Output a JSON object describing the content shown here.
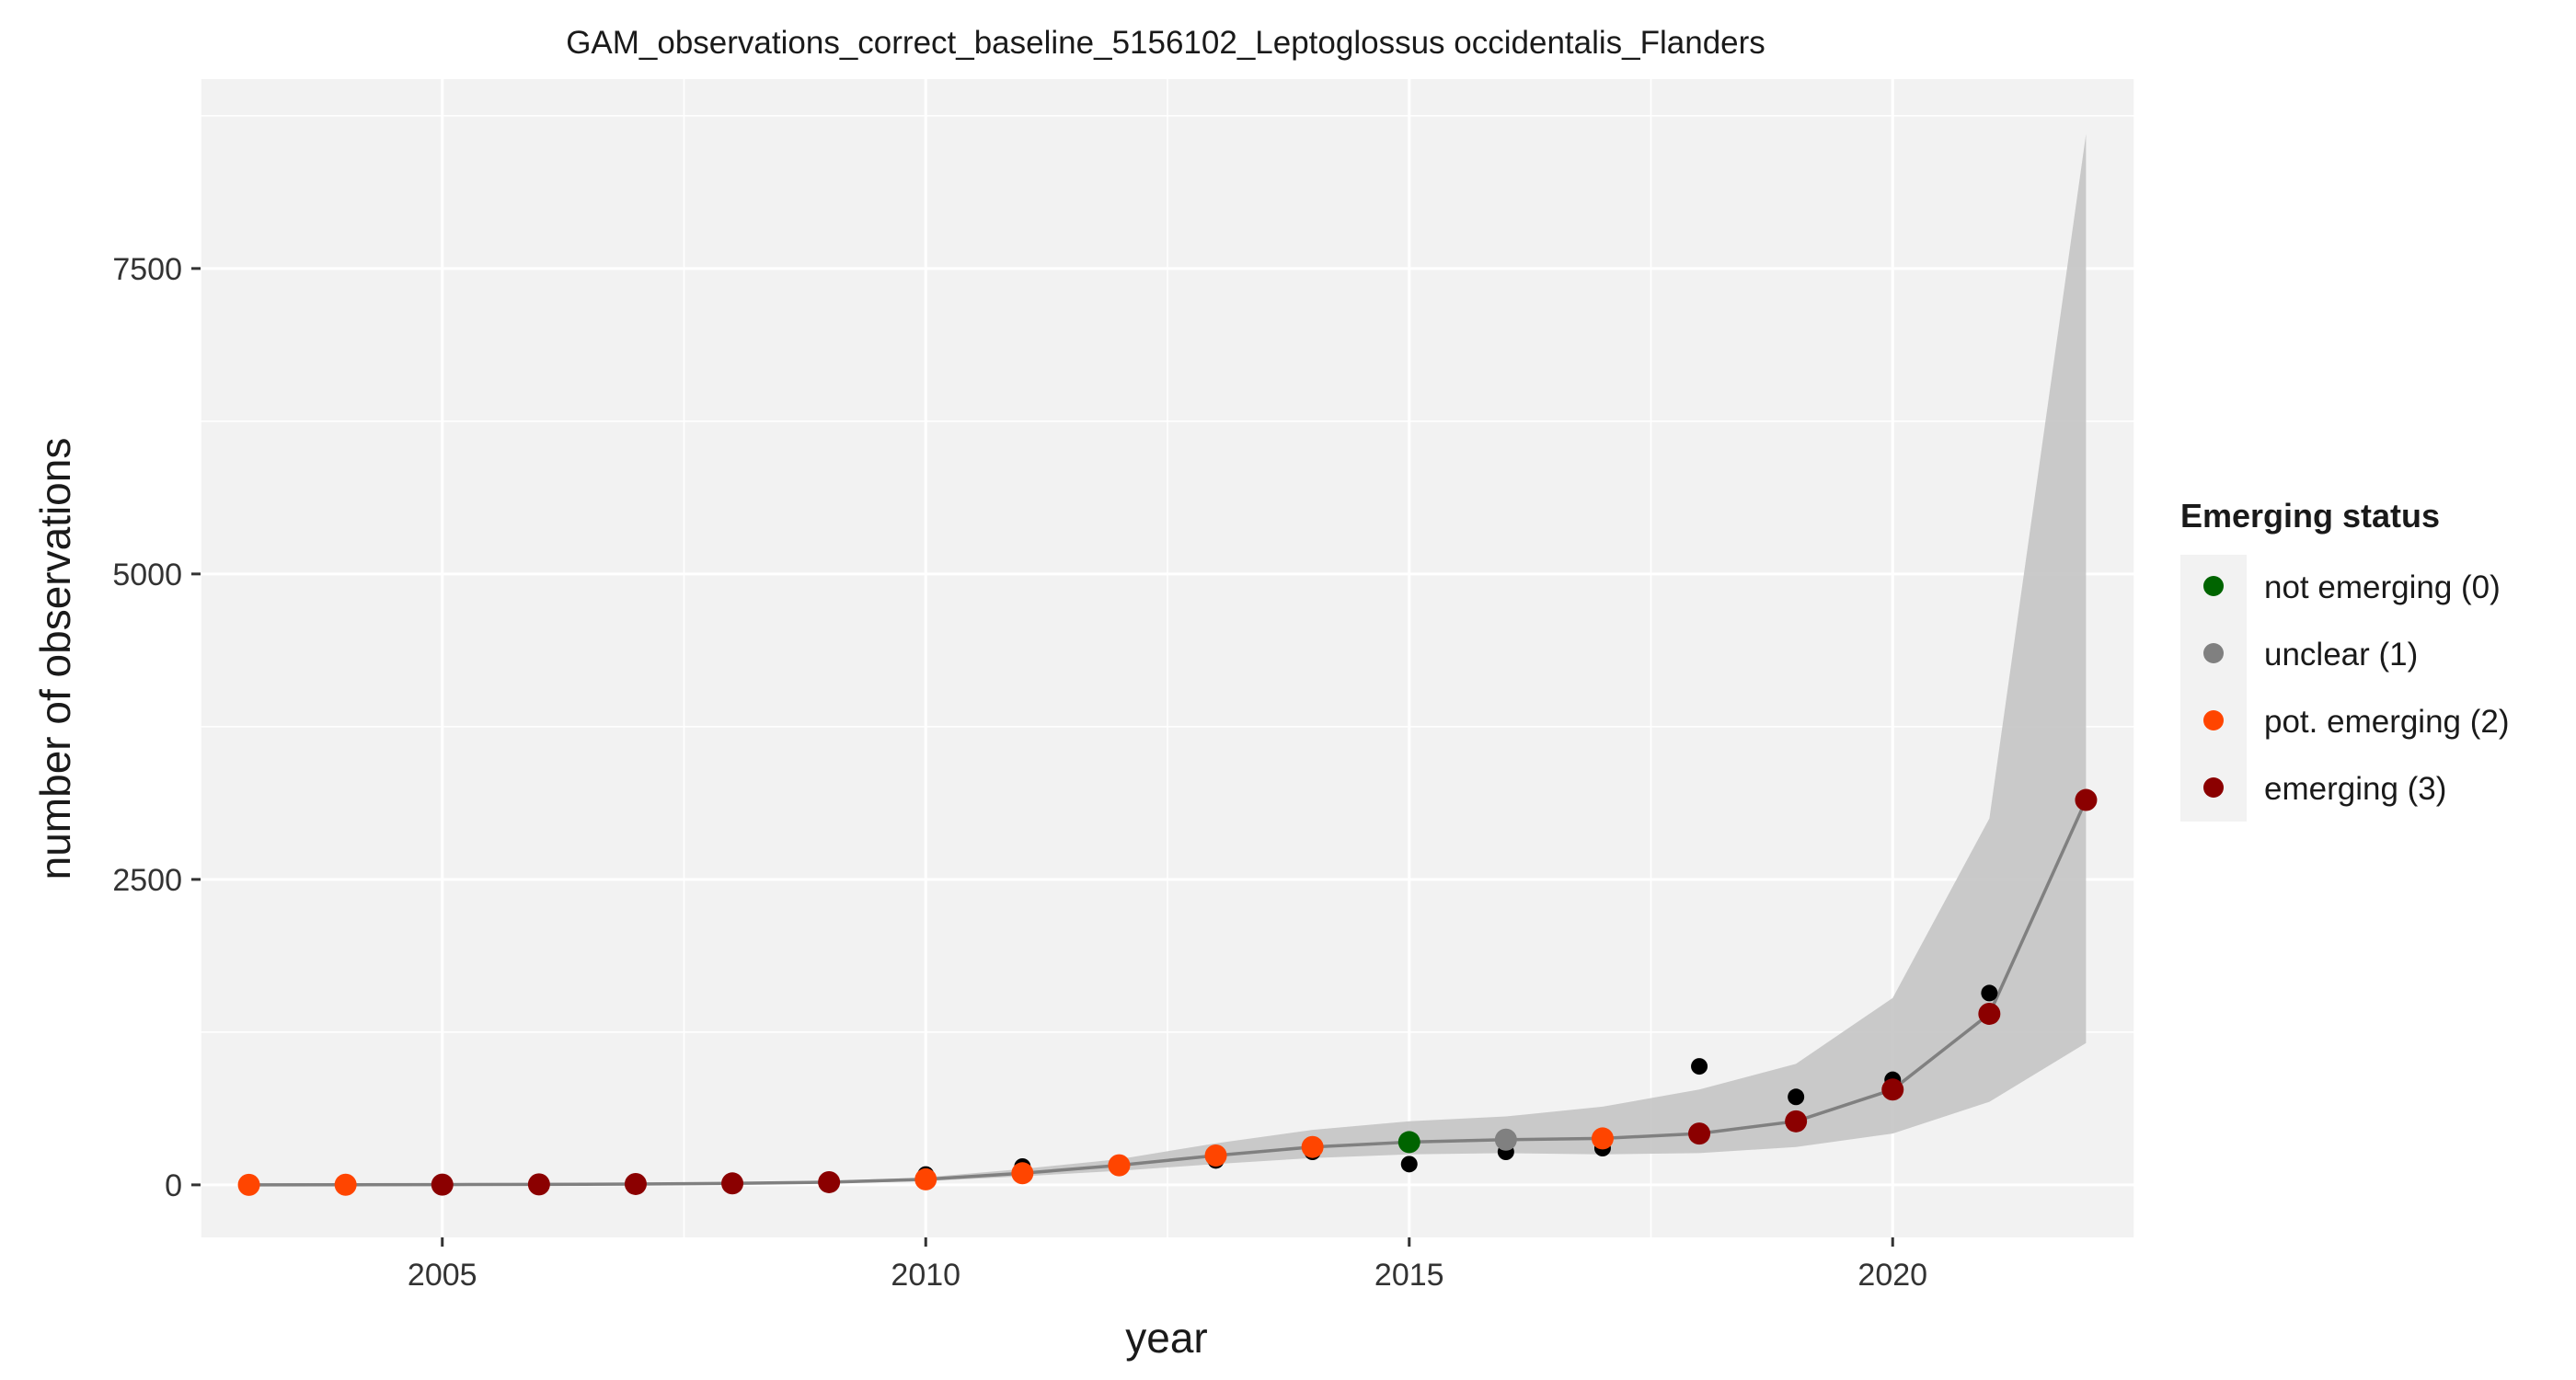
{
  "chart_data": {
    "type": "scatter",
    "title": "GAM_observations_correct_baseline_5156102_Leptoglossus occidentalis_Flanders",
    "xlabel": "year",
    "ylabel": "number of observations",
    "xlim": [
      2002.5,
      2022.5
    ],
    "ylim": [
      -430,
      9050
    ],
    "xticks": [
      2005,
      2010,
      2015,
      2020
    ],
    "yticks": [
      0,
      2500,
      5000,
      7500
    ],
    "xtick_labels": [
      "2005",
      "2010",
      "2015",
      "2020"
    ],
    "ytick_labels": [
      "0",
      "2500",
      "5000",
      "7500"
    ],
    "x": [
      2003,
      2004,
      2005,
      2006,
      2007,
      2008,
      2009,
      2010,
      2011,
      2012,
      2013,
      2014,
      2015,
      2016,
      2017,
      2018,
      2019,
      2020,
      2021,
      2022
    ],
    "observed": [
      0,
      0,
      2,
      1,
      3,
      8,
      20,
      85,
      150,
      160,
      200,
      270,
      170,
      270,
      300,
      970,
      720,
      860,
      1570,
      3150
    ],
    "fitted": [
      0,
      1,
      2,
      4,
      7,
      12,
      22,
      45,
      95,
      160,
      240,
      310,
      350,
      370,
      380,
      420,
      520,
      780,
      1400,
      3150
    ],
    "ci_lower": [
      0,
      0,
      0,
      1,
      3,
      6,
      13,
      30,
      70,
      115,
      170,
      220,
      250,
      260,
      250,
      260,
      310,
      420,
      680,
      1160
    ],
    "ci_upper": [
      1,
      2,
      5,
      8,
      13,
      20,
      32,
      62,
      130,
      210,
      340,
      450,
      520,
      560,
      640,
      780,
      990,
      1530,
      3000,
      8600
    ],
    "status": [
      2,
      2,
      3,
      3,
      3,
      3,
      3,
      2,
      2,
      2,
      2,
      2,
      0,
      1,
      2,
      3,
      3,
      3,
      3,
      3
    ],
    "legend": {
      "title": "Emerging status",
      "position": "right",
      "entries": [
        {
          "label": "not emerging (0)",
          "color": "#006400"
        },
        {
          "label": "unclear (1)",
          "color": "#808080"
        },
        {
          "label": "pot. emerging (2)",
          "color": "#FF4500"
        },
        {
          "label": "emerging (3)",
          "color": "#8B0000"
        }
      ]
    },
    "colors": {
      "panel_bg": "#F2F2F2",
      "grid": "#FFFFFF",
      "ribbon": "#C4C4C4",
      "line": "#808080",
      "observed_point": "#000000"
    }
  }
}
